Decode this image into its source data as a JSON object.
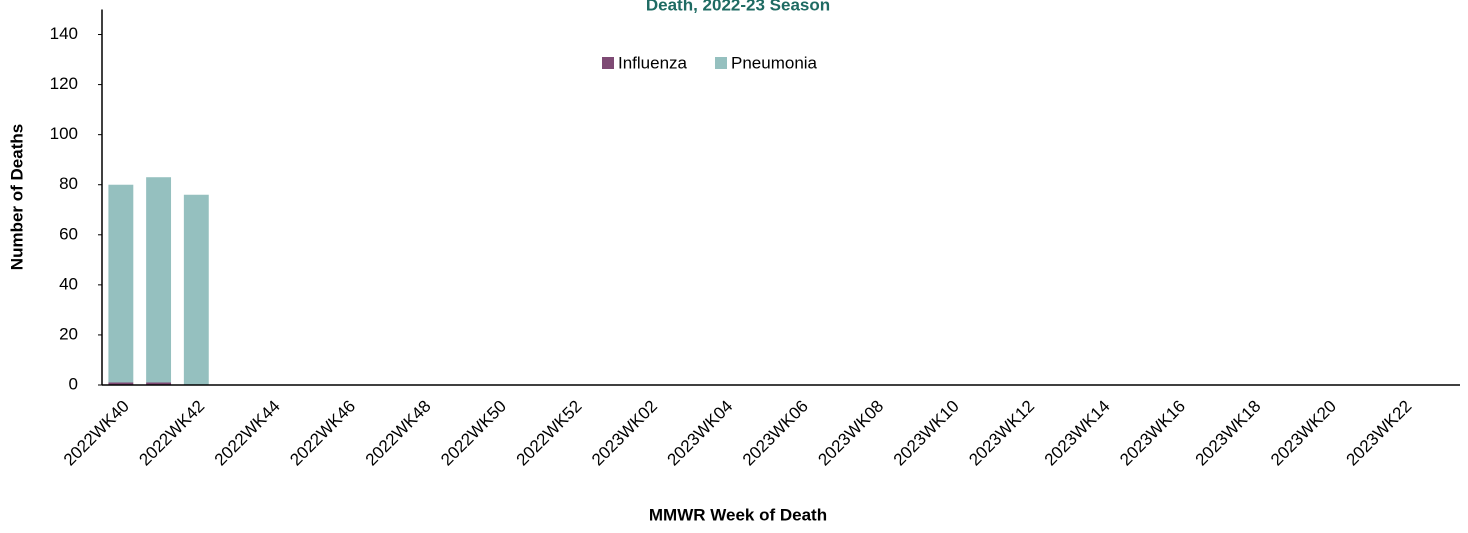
{
  "chart_data": {
    "type": "stacked-bar",
    "title": "Death, 2022-23 Season",
    "x_label": "MMWR Week of Death",
    "y_label": "Number of Deaths",
    "categories": [
      "2022WK40",
      null,
      "2022WK42",
      null,
      "2022WK44",
      null,
      "2022WK46",
      null,
      "2022WK48",
      null,
      "2022WK50",
      null,
      "2022WK52",
      null,
      "2023WK02",
      null,
      "2023WK04",
      null,
      "2023WK06",
      null,
      "2023WK08",
      null,
      "2023WK10",
      null,
      "2023WK12",
      null,
      "2023WK14",
      null,
      "2023WK16",
      null,
      "2023WK18",
      null,
      "2023WK20",
      null,
      "2023WK22",
      null
    ],
    "series": [
      {
        "name": "Influenza",
        "color": "#7e4a74",
        "values": [
          1,
          1,
          0,
          null,
          null,
          null,
          null,
          null,
          null,
          null,
          null,
          null,
          null,
          null,
          null,
          null,
          null,
          null,
          null,
          null,
          null,
          null,
          null,
          null,
          null,
          null,
          null,
          null,
          null,
          null,
          null,
          null,
          null,
          null,
          null,
          null
        ]
      },
      {
        "name": "Pneumonia",
        "color": "#95c0bf",
        "values": [
          79,
          82,
          76,
          null,
          null,
          null,
          null,
          null,
          null,
          null,
          null,
          null,
          null,
          null,
          null,
          null,
          null,
          null,
          null,
          null,
          null,
          null,
          null,
          null,
          null,
          null,
          null,
          null,
          null,
          null,
          null,
          null,
          null,
          null,
          null,
          null
        ]
      }
    ],
    "ylim": [
      0,
      150
    ],
    "yticks": [
      0,
      20,
      40,
      60,
      80,
      100,
      120,
      140
    ],
    "grid": false,
    "legend": "top"
  }
}
